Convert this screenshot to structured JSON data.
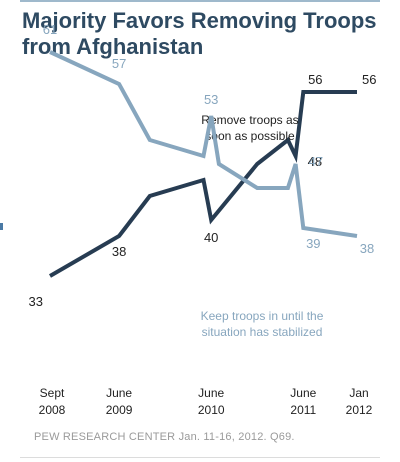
{
  "header": {
    "title": "Majority Favors Removing Troops from Afghanistan"
  },
  "footer": {
    "source": "PEW RESEARCH CENTER Jan. 11-16, 2012. Q69."
  },
  "colors": {
    "title": "#2e4a62",
    "remove_series": "#273c52",
    "keep_series": "#87a6be",
    "axis_labels": "#222222",
    "top_rule": "#9fb9cc"
  },
  "chart_data": {
    "type": "line",
    "title": "Majority Favors Removing Troops from Afghanistan",
    "xlabel": "",
    "ylabel": "",
    "ylim": [
      30,
      64
    ],
    "grid": false,
    "legend": "inline annotations",
    "x_ticks": [
      {
        "date": "2008-09",
        "line1": "Sept",
        "line2": "2008"
      },
      {
        "date": "2009-06",
        "line1": "June",
        "line2": "2009"
      },
      {
        "date": "2010-06",
        "line1": "June",
        "line2": "2010"
      },
      {
        "date": "2011-06",
        "line1": "June",
        "line2": "2011"
      },
      {
        "date": "2012-01",
        "line1": "Jan",
        "line2": "2012"
      }
    ],
    "series": [
      {
        "name": "Remove troops as soon as possible",
        "label_lines": [
          "Remove troops as",
          "soon as possible"
        ],
        "color": "#273c52",
        "points": [
          {
            "x": "2008-09",
            "y": 33,
            "label": "33"
          },
          {
            "x": "2009-06",
            "y": 38,
            "label": "38"
          },
          {
            "x": "2009-10",
            "y": 43
          },
          {
            "x": "2010-05",
            "y": 45
          },
          {
            "x": "2010-06",
            "y": 40,
            "label": "40"
          },
          {
            "x": "2010-12",
            "y": 47
          },
          {
            "x": "2011-04",
            "y": 50
          },
          {
            "x": "2011-05",
            "y": 48,
            "label": "48"
          },
          {
            "x": "2011-06",
            "y": 56,
            "label": "56"
          },
          {
            "x": "2012-01",
            "y": 56,
            "label": "56"
          }
        ]
      },
      {
        "name": "Keep troops in until the situation has stabilized",
        "label_lines": [
          "Keep troops in until the",
          "situation has stabilized"
        ],
        "color": "#87a6be",
        "points": [
          {
            "x": "2008-09",
            "y": 61,
            "label": "61"
          },
          {
            "x": "2009-06",
            "y": 57,
            "label": "57"
          },
          {
            "x": "2009-10",
            "y": 50
          },
          {
            "x": "2010-05",
            "y": 48
          },
          {
            "x": "2010-06",
            "y": 53,
            "label": "53"
          },
          {
            "x": "2010-07",
            "y": 47
          },
          {
            "x": "2010-12",
            "y": 44
          },
          {
            "x": "2011-04",
            "y": 44
          },
          {
            "x": "2011-05",
            "y": 47,
            "label": "47"
          },
          {
            "x": "2011-06",
            "y": 39,
            "label": "39"
          },
          {
            "x": "2012-01",
            "y": 38,
            "label": "38"
          }
        ]
      }
    ]
  }
}
